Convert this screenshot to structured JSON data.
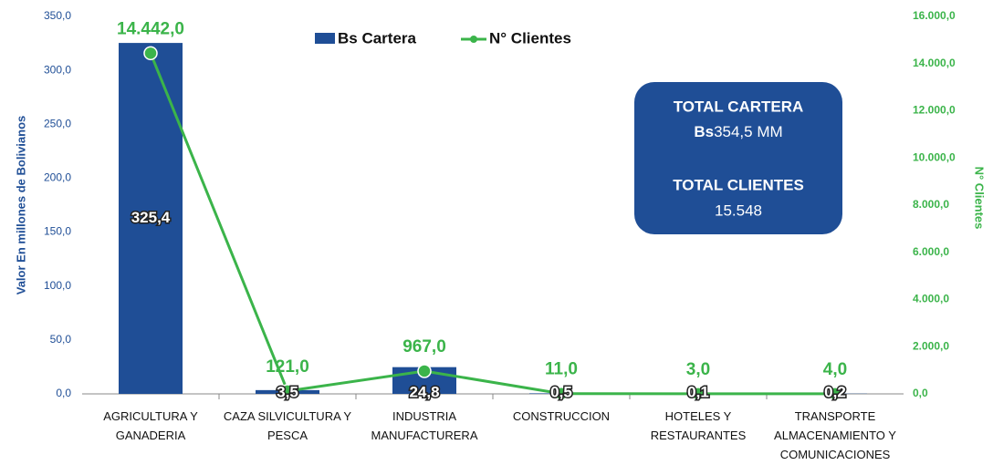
{
  "chart_data": {
    "type": "bar_line",
    "categories": [
      "AGRICULTURA Y GANADERIA",
      "CAZA SILVICULTURA Y PESCA",
      "INDUSTRIA MANUFACTURERA",
      "CONSTRUCCION",
      "HOTELES Y RESTAURANTES",
      "TRANSPORTE ALMACENAMIENTO Y COMUNICACIONES"
    ],
    "series": [
      {
        "name": "Bs Cartera",
        "color": "#1f4e96",
        "axis": "y",
        "values": [
          325.4,
          3.5,
          24.8,
          0.5,
          0.1,
          0.2
        ],
        "value_labels": [
          "325,4",
          "3,5",
          "24,8",
          "0,5",
          "0,1",
          "0,2"
        ]
      },
      {
        "name": "N° Clientes",
        "color": "#3bb44a",
        "axis": "y2",
        "values": [
          14442,
          121,
          967,
          11,
          3,
          4
        ],
        "value_labels": [
          "14.442,0",
          "121,0",
          "967,0",
          "11,0",
          "3,0",
          "4,0"
        ]
      }
    ],
    "ylabel": "Valor En millones de Bolivianos",
    "y2label": "N° Clientes",
    "ylim": [
      0,
      350
    ],
    "yticks": [
      {
        "value": 0,
        "label": "0,0"
      },
      {
        "value": 50,
        "label": "50,0"
      },
      {
        "value": 100,
        "label": "100,0"
      },
      {
        "value": 150,
        "label": "150,0"
      },
      {
        "value": 200,
        "label": "200,0"
      },
      {
        "value": 250,
        "label": "250,0"
      },
      {
        "value": 300,
        "label": "300,0"
      },
      {
        "value": 350,
        "label": "350,0"
      }
    ],
    "y2lim": [
      0,
      16000
    ],
    "y2ticks": [
      {
        "value": 0,
        "label": "0,0"
      },
      {
        "value": 2000,
        "label": "2.000,0"
      },
      {
        "value": 4000,
        "label": "4.000,0"
      },
      {
        "value": 6000,
        "label": "6.000,0"
      },
      {
        "value": 8000,
        "label": "8.000,0"
      },
      {
        "value": 10000,
        "label": "10.000,0"
      },
      {
        "value": 12000,
        "label": "12.000,0"
      },
      {
        "value": 14000,
        "label": "14.000,0"
      },
      {
        "value": 16000,
        "label": "16.000,0"
      }
    ],
    "legend": "top",
    "annotations": {
      "cartera_title": "TOTAL CARTERA",
      "cartera_unit": "Bs",
      "cartera_value": "354,5 MM",
      "clientes_title": "TOTAL CLIENTES",
      "clientes_value": "15.548"
    }
  }
}
